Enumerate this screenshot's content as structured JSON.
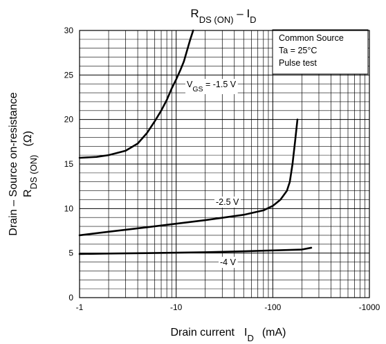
{
  "chart_data": {
    "type": "line",
    "title_main": "R",
    "title_sub": "DS (ON)",
    "title_rest": " – I",
    "title_sub2": "D",
    "x_scale": "log",
    "xlim": [
      -1,
      -1000
    ],
    "ylim": [
      0,
      30
    ],
    "x_ticks": [
      "-1",
      "-10",
      "-100",
      "-1000"
    ],
    "y_ticks": [
      "0",
      "5",
      "10",
      "15",
      "20",
      "25",
      "30"
    ],
    "xlabel_main": "Drain current",
    "xlabel_sym": "I",
    "xlabel_sub": "D",
    "xlabel_unit": "(mA)",
    "ylabel_line1": "Drain – Source on-resistance",
    "ylabel_sym": "R",
    "ylabel_sub": "DS (ON)",
    "ylabel_unit": "(Ω)",
    "grid": true,
    "legend_lines": [
      "Common Source",
      "Ta = 25°C",
      "Pulse test"
    ],
    "legend_placement": "top-right",
    "series": [
      {
        "label_pre": "V",
        "label_sub": "GS",
        "label_post": " = -1.5 V",
        "x": [
          -1,
          -1.5,
          -2,
          -3,
          -4,
          -5,
          -6,
          -7,
          -8,
          -9,
          -10,
          -11,
          -12,
          -13,
          -14,
          -15
        ],
        "y": [
          15.7,
          15.8,
          16.0,
          16.5,
          17.3,
          18.5,
          19.8,
          21.0,
          22.2,
          23.5,
          24.5,
          25.5,
          26.5,
          27.8,
          29.0,
          30.0
        ]
      },
      {
        "label_pre": "",
        "label_sub": "",
        "label_post": "-2.5 V",
        "x": [
          -1,
          -2,
          -5,
          -10,
          -20,
          -50,
          -80,
          -100,
          -120,
          -140,
          -150,
          -160,
          -170,
          -180
        ],
        "y": [
          7.0,
          7.4,
          7.9,
          8.3,
          8.7,
          9.3,
          9.8,
          10.3,
          11.0,
          12.0,
          13.0,
          15.0,
          17.5,
          20.0
        ]
      },
      {
        "label_pre": "",
        "label_sub": "",
        "label_post": "-4 V",
        "x": [
          -1,
          -2,
          -5,
          -10,
          -20,
          -50,
          -100,
          -200,
          -250
        ],
        "y": [
          4.9,
          4.95,
          5.0,
          5.05,
          5.1,
          5.2,
          5.3,
          5.4,
          5.6
        ]
      }
    ]
  }
}
